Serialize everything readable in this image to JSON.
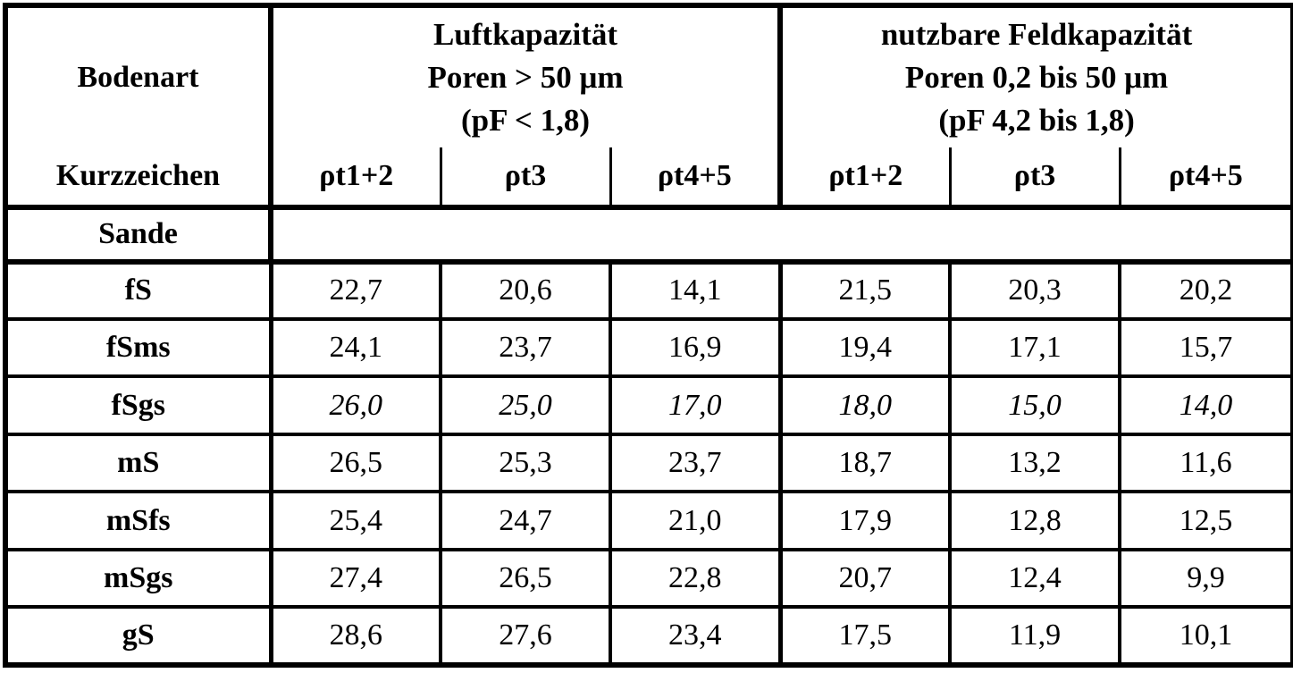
{
  "table": {
    "header": {
      "col1_line1": "Bodenart",
      "col1_line2": "Kurzzeichen",
      "group1": {
        "title": "Luftkapazität",
        "subtitle": "Poren > 50 μm",
        "condition": "(pF < 1,8)"
      },
      "group2": {
        "title": "nutzbare Feldkapazität",
        "subtitle": "Poren 0,2 bis 50 μm",
        "condition": "(pF 4,2 bis 1,8)"
      },
      "subcols": [
        "ρt1+2",
        "ρt3",
        "ρt4+5",
        "ρt1+2",
        "ρt3",
        "ρt4+5"
      ]
    },
    "section": {
      "label": "Sande"
    },
    "rows": [
      {
        "label": "fS",
        "values": [
          "22,7",
          "20,6",
          "14,1",
          "21,5",
          "20,3",
          "20,2"
        ]
      },
      {
        "label": "fSms",
        "values": [
          "24,1",
          "23,7",
          "16,9",
          "19,4",
          "17,1",
          "15,7"
        ]
      },
      {
        "label": "fSgs",
        "values": [
          "26,0",
          "25,0",
          "17,0",
          "18,0",
          "15,0",
          "14,0"
        ]
      },
      {
        "label": "mS",
        "values": [
          "26,5",
          "25,3",
          "23,7",
          "18,7",
          "13,2",
          "11,6"
        ]
      },
      {
        "label": "mSfs",
        "values": [
          "25,4",
          "24,7",
          "21,0",
          "17,9",
          "12,8",
          "12,5"
        ]
      },
      {
        "label": "mSgs",
        "values": [
          "27,4",
          "26,5",
          "22,8",
          "20,7",
          "12,4",
          "9,9"
        ]
      },
      {
        "label": "gS",
        "values": [
          "28,6",
          "27,6",
          "23,4",
          "17,5",
          "11,9",
          "10,1"
        ]
      }
    ],
    "colors": {
      "border": "#000000",
      "text": "#000000",
      "background": "#ffffff"
    }
  },
  "chart_data": {
    "type": "table",
    "column_groups": [
      "Luftkapazität Poren > 50 μm (pF < 1,8)",
      "nutzbare Feldkapazität Poren 0,2 bis 50 μm (pF 4,2 bis 1,8)"
    ],
    "columns": [
      "Kurzzeichen",
      "ρt1+2",
      "ρt3",
      "ρt4+5",
      "ρt1+2",
      "ρt3",
      "ρt4+5"
    ],
    "section": "Sande",
    "rows": [
      [
        "fS",
        22.7,
        20.6,
        14.1,
        21.5,
        20.3,
        20.2
      ],
      [
        "fSms",
        24.1,
        23.7,
        16.9,
        19.4,
        17.1,
        15.7
      ],
      [
        "fSgs",
        26.0,
        25.0,
        17.0,
        18.0,
        15.0,
        14.0
      ],
      [
        "mS",
        26.5,
        25.3,
        23.7,
        18.7,
        13.2,
        11.6
      ],
      [
        "mSfs",
        25.4,
        24.7,
        21.0,
        17.9,
        12.8,
        12.5
      ],
      [
        "mSgs",
        27.4,
        26.5,
        22.8,
        20.7,
        12.4,
        9.9
      ],
      [
        "gS",
        28.6,
        27.6,
        23.4,
        17.5,
        11.9,
        10.1
      ]
    ],
    "italic_rows": [
      "fSgs"
    ]
  }
}
